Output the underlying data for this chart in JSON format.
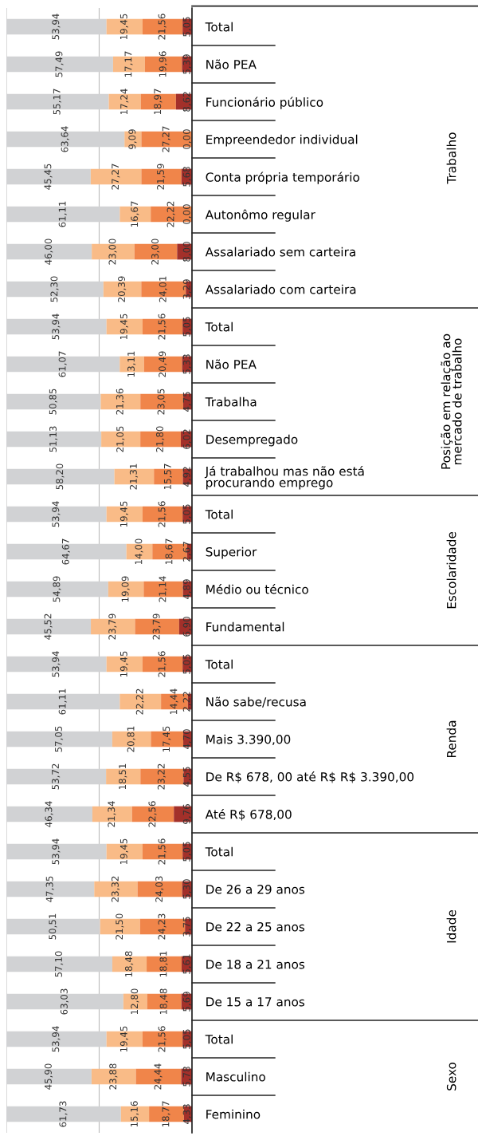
{
  "chart_data": {
    "type": "bar",
    "orientation": "horizontal",
    "stacked": true,
    "categories": [
      "Total",
      "Não PEA",
      "Funcionário público",
      "Empreendedor individual",
      "Conta própria temporário",
      "Autonômo regular",
      "Assalariado sem carteira",
      "Assalariado com carteira",
      "Total",
      "Não PEA",
      "Trabalha",
      "Desempregado",
      "Já trabalhou mas não está\nprocurando emprego",
      "Total",
      "Superior",
      "Médio ou técnico",
      "Fundamental",
      "Total",
      "Não sabe/recusa",
      "Mais 3.390,00",
      "De R$ 678, 00 até R$ R$ 3.390,00",
      "Até R$ 678,00",
      "Total",
      "De 26 a 29 anos",
      "De 22 a 25 anos",
      "De 18 a 21 anos",
      "De 15 a 17 anos",
      "Total",
      "Masculino",
      "Feminino"
    ],
    "series": [
      {
        "color": "#d1d2d4",
        "values": [
          53.94,
          57.49,
          55.17,
          63.64,
          45.45,
          61.11,
          46.0,
          52.3,
          53.94,
          61.07,
          50.85,
          51.13,
          58.2,
          53.94,
          64.67,
          54.89,
          45.52,
          53.94,
          61.11,
          57.05,
          53.72,
          46.34,
          53.94,
          47.35,
          50.51,
          57.1,
          63.03,
          53.94,
          45.9,
          61.73
        ],
        "value_labels": [
          "53,94",
          "57,49",
          "55,17",
          "63,64",
          "45,45",
          "61,11",
          "46,00",
          "52,30",
          "53,94",
          "61,07",
          "50,85",
          "51,13",
          "58,20",
          "53,94",
          "64,67",
          "54,89",
          "45,52",
          "53,94",
          "61,11",
          "57,05",
          "53,72",
          "46,34",
          "53,94",
          "47,35",
          "50,51",
          "57,10",
          "63,03",
          "53,94",
          "45,90",
          "61,73"
        ]
      },
      {
        "color": "#f9bb87",
        "values": [
          19.45,
          17.17,
          17.24,
          9.09,
          27.27,
          16.67,
          23.0,
          20.39,
          19.45,
          13.11,
          21.36,
          21.05,
          21.31,
          19.45,
          14.0,
          19.09,
          23.79,
          19.45,
          22.22,
          20.81,
          18.51,
          21.34,
          19.45,
          23.32,
          21.5,
          18.48,
          12.8,
          19.45,
          23.88,
          15.16
        ],
        "value_labels": [
          "19,45",
          "17,17",
          "17,24",
          "9,09",
          "27,27",
          "16,67",
          "23,00",
          "20,39",
          "19,45",
          "13,11",
          "21,36",
          "21,05",
          "21,31",
          "19,45",
          "14,00",
          "19,09",
          "23,79",
          "19,45",
          "22,22",
          "20,81",
          "18,51",
          "21,34",
          "19,45",
          "23,32",
          "21,50",
          "18,48",
          "12,80",
          "19,45",
          "23,88",
          "15,16"
        ]
      },
      {
        "color": "#f0854a",
        "values": [
          21.56,
          19.96,
          18.97,
          27.27,
          21.59,
          22.22,
          23.0,
          24.01,
          21.56,
          20.49,
          23.05,
          21.8,
          15.57,
          21.56,
          18.67,
          21.14,
          23.79,
          21.56,
          14.44,
          17.45,
          23.22,
          22.56,
          21.56,
          24.03,
          24.23,
          18.81,
          18.48,
          21.56,
          24.44,
          18.77
        ],
        "value_labels": [
          "21,56",
          "19,96",
          "18,97",
          "27,27",
          "21,59",
          "22,22",
          "23,00",
          "24,01",
          "21,56",
          "20,49",
          "23,05",
          "21,80",
          "15,57",
          "21,56",
          "18,67",
          "21,14",
          "23,79",
          "21,56",
          "14,44",
          "17,45",
          "23,22",
          "22,56",
          "21,56",
          "24,03",
          "24,23",
          "18,81",
          "18,48",
          "21,56",
          "24,44",
          "18,77"
        ]
      },
      {
        "color": "#a3302a",
        "values": [
          5.05,
          5.39,
          8.62,
          0.0,
          5.68,
          0.0,
          8.0,
          3.29,
          5.05,
          5.33,
          4.75,
          6.02,
          4.92,
          5.05,
          2.67,
          4.89,
          6.9,
          5.05,
          2.22,
          4.7,
          4.55,
          9.76,
          5.05,
          5.3,
          3.75,
          5.61,
          5.69,
          5.05,
          5.78,
          4.33
        ],
        "value_labels": [
          "5,05",
          "5,39",
          "8,62",
          "0,00",
          "5,68",
          "0,00",
          "8,00",
          "3,29",
          "5,05",
          "5,33",
          "4,75",
          "6,02",
          "4,92",
          "5,05",
          "2,67",
          "4,89",
          "6,90",
          "5,05",
          "2,22",
          "4,70",
          "4,55",
          "9,76",
          "5,05",
          "5,30",
          "3,75",
          "5,61",
          "5,69",
          "5,05",
          "5,78",
          "4,33"
        ]
      }
    ],
    "xlim": [
      0,
      100.02
    ],
    "xticks": [
      {
        "value": 0,
        "label": null
      },
      {
        "value": 50,
        "label": null
      },
      {
        "value": 100,
        "label": null
      }
    ],
    "grid": "x",
    "tick_labels": "y",
    "annotations": [
      "Trabalho",
      "Posição em relação ao\nmercado de trabalho",
      "Escolaridade",
      "Renda",
      "Idade",
      "Sexo"
    ]
  }
}
